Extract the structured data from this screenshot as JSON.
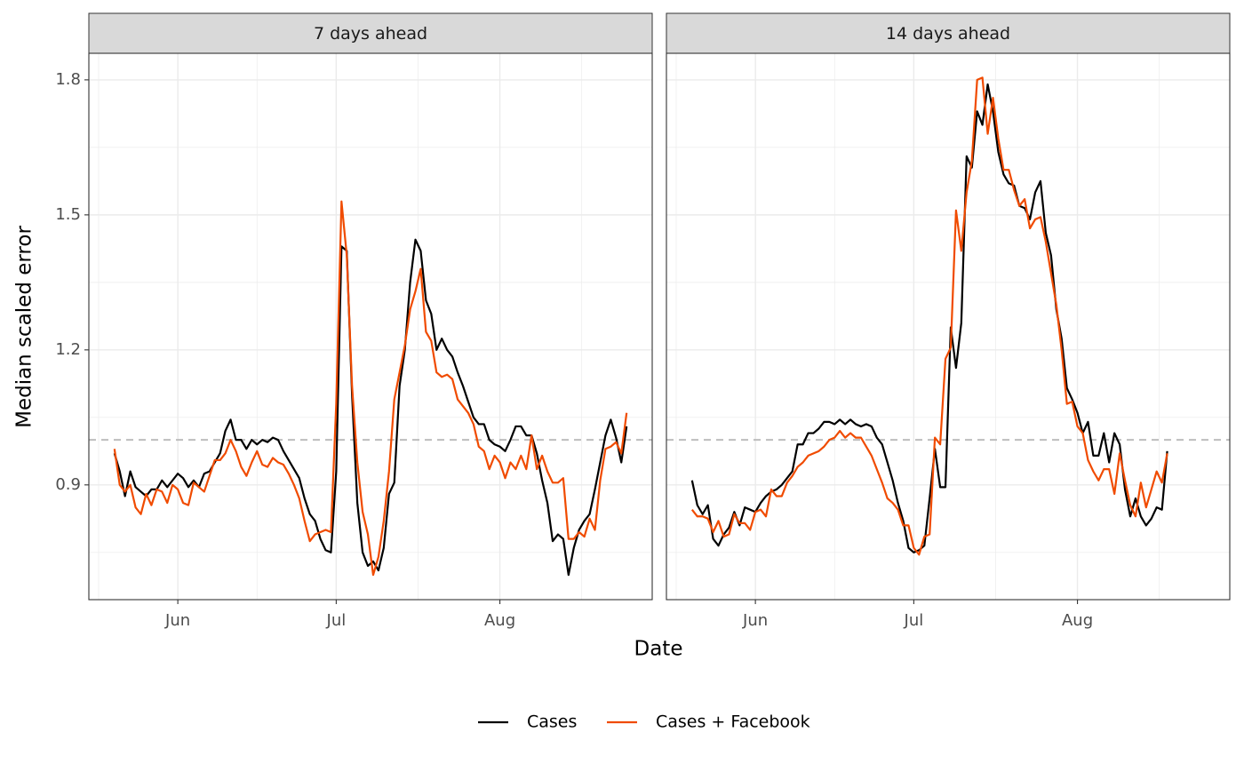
{
  "chart_data": [
    {
      "type": "line",
      "title": "7 days ahead",
      "categories": [
        null,
        null,
        null,
        null,
        null,
        null,
        null,
        null,
        null,
        null,
        null,
        null,
        "Jun",
        null,
        null,
        null,
        null,
        null,
        null,
        null,
        null,
        null,
        null,
        null,
        null,
        null,
        null,
        null,
        null,
        null,
        null,
        null,
        null,
        null,
        null,
        null,
        null,
        null,
        null,
        null,
        null,
        null,
        "Jul",
        null,
        null,
        null,
        null,
        null,
        null,
        null,
        null,
        null,
        null,
        null,
        null,
        null,
        null,
        null,
        null,
        null,
        null,
        null,
        null,
        null,
        null,
        null,
        null,
        null,
        null,
        null,
        null,
        null,
        null,
        "Aug",
        null,
        null,
        null,
        null,
        null,
        null,
        null,
        null,
        null,
        null,
        null,
        null,
        null,
        null,
        null,
        null,
        null,
        null,
        null,
        null,
        null,
        null,
        null,
        null
      ],
      "series": [
        {
          "name": "Cases",
          "color": "#000000",
          "values": [
            0.97,
            0.93,
            0.875,
            0.93,
            0.895,
            0.885,
            0.875,
            0.89,
            0.89,
            0.91,
            0.895,
            0.91,
            0.925,
            0.915,
            0.895,
            0.91,
            0.895,
            0.925,
            0.93,
            0.95,
            0.97,
            1.02,
            1.045,
            1.0,
            1.0,
            0.98,
            1.0,
            0.99,
            1.0,
            0.995,
            1.005,
            1.0,
            0.975,
            0.955,
            0.935,
            0.915,
            0.87,
            0.835,
            0.82,
            0.78,
            0.755,
            0.75,
            0.93,
            1.43,
            1.42,
            1.1,
            0.86,
            0.75,
            0.72,
            0.73,
            0.71,
            0.76,
            0.88,
            0.905,
            1.12,
            1.2,
            1.35,
            1.445,
            1.42,
            1.31,
            1.28,
            1.2,
            1.225,
            1.2,
            1.185,
            1.15,
            1.12,
            1.085,
            1.05,
            1.035,
            1.035,
            1.0,
            0.99,
            0.985,
            0.975,
            1.0,
            1.03,
            1.03,
            1.01,
            1.01,
            0.97,
            0.91,
            0.86,
            0.775,
            0.79,
            0.78,
            0.7,
            0.76,
            0.8,
            0.82,
            0.835,
            0.89,
            0.95,
            1.01,
            1.045,
            1.005,
            0.95,
            1.03
          ]
        },
        {
          "name": "Cases + Facebook",
          "color": "#f04b00",
          "values": [
            0.98,
            0.9,
            0.885,
            0.9,
            0.85,
            0.835,
            0.88,
            0.855,
            0.89,
            0.885,
            0.86,
            0.9,
            0.89,
            0.86,
            0.855,
            0.905,
            0.895,
            0.885,
            0.92,
            0.955,
            0.955,
            0.97,
            1.0,
            0.975,
            0.94,
            0.92,
            0.95,
            0.975,
            0.945,
            0.94,
            0.96,
            0.95,
            0.945,
            0.925,
            0.9,
            0.87,
            0.82,
            0.775,
            0.79,
            0.795,
            0.8,
            0.795,
            1.08,
            1.53,
            1.41,
            1.12,
            0.95,
            0.84,
            0.79,
            0.7,
            0.74,
            0.82,
            0.93,
            1.09,
            1.15,
            1.21,
            1.29,
            1.33,
            1.38,
            1.24,
            1.22,
            1.15,
            1.14,
            1.145,
            1.135,
            1.09,
            1.075,
            1.06,
            1.035,
            0.985,
            0.975,
            0.935,
            0.965,
            0.95,
            0.915,
            0.95,
            0.935,
            0.965,
            0.935,
            1.01,
            0.935,
            0.965,
            0.93,
            0.905,
            0.905,
            0.915,
            0.78,
            0.78,
            0.795,
            0.785,
            0.825,
            0.8,
            0.91,
            0.98,
            0.985,
            0.995,
            0.97,
            1.06
          ]
        }
      ],
      "ylim": [
        0.645,
        1.859
      ],
      "yticks": [
        0.9,
        1.2,
        1.5,
        1.8
      ],
      "grid": true,
      "hline": 1
    },
    {
      "type": "line",
      "title": "14 days ahead",
      "categories": [
        null,
        null,
        null,
        null,
        null,
        null,
        null,
        null,
        null,
        null,
        null,
        null,
        "Jun",
        null,
        null,
        null,
        null,
        null,
        null,
        null,
        null,
        null,
        null,
        null,
        null,
        null,
        null,
        null,
        null,
        null,
        null,
        null,
        null,
        null,
        null,
        null,
        null,
        null,
        null,
        null,
        null,
        null,
        "Jul",
        null,
        null,
        null,
        null,
        null,
        null,
        null,
        null,
        null,
        null,
        null,
        null,
        null,
        null,
        null,
        null,
        null,
        null,
        null,
        null,
        null,
        null,
        null,
        null,
        null,
        null,
        null,
        null,
        null,
        null,
        "Aug",
        null,
        null,
        null,
        null,
        null,
        null,
        null,
        null,
        null,
        null,
        null,
        null,
        null,
        null,
        null,
        null,
        null,
        null,
        null,
        null,
        null,
        null,
        null,
        null
      ],
      "series": [
        {
          "name": "Cases",
          "color": "#000000",
          "values": [
            0.91,
            0.855,
            0.835,
            0.855,
            0.78,
            0.765,
            0.79,
            0.805,
            0.84,
            0.81,
            0.85,
            0.845,
            0.84,
            0.86,
            0.875,
            0.885,
            0.89,
            0.9,
            0.915,
            0.93,
            0.99,
            0.99,
            1.015,
            1.015,
            1.025,
            1.04,
            1.04,
            1.035,
            1.045,
            1.035,
            1.045,
            1.035,
            1.03,
            1.035,
            1.03,
            1.005,
            0.99,
            0.95,
            0.91,
            0.86,
            0.82,
            0.76,
            0.75,
            0.755,
            0.765,
            0.87,
            0.98,
            0.895,
            0.895,
            1.25,
            1.16,
            1.26,
            1.63,
            1.605,
            1.73,
            1.7,
            1.79,
            1.73,
            1.64,
            1.59,
            1.57,
            1.565,
            1.52,
            1.515,
            1.49,
            1.55,
            1.575,
            1.46,
            1.41,
            1.29,
            1.225,
            1.115,
            1.09,
            1.06,
            1.015,
            1.04,
            0.965,
            0.965,
            1.015,
            0.95,
            1.015,
            0.99,
            0.89,
            0.83,
            0.87,
            0.83,
            0.81,
            0.825,
            0.85,
            0.845,
            0.975,
            null,
            null,
            null,
            null,
            null,
            null,
            null
          ]
        },
        {
          "name": "Cases + Facebook",
          "color": "#f04b00",
          "values": [
            0.845,
            0.83,
            0.83,
            0.825,
            0.795,
            0.82,
            0.785,
            0.79,
            0.835,
            0.815,
            0.815,
            0.8,
            0.84,
            0.845,
            0.83,
            0.89,
            0.875,
            0.875,
            0.905,
            0.92,
            0.94,
            0.95,
            0.965,
            0.97,
            0.975,
            0.985,
            1.0,
            1.005,
            1.02,
            1.005,
            1.015,
            1.005,
            1.005,
            0.985,
            0.965,
            0.935,
            0.905,
            0.87,
            0.86,
            0.845,
            0.81,
            0.81,
            0.76,
            0.745,
            0.785,
            0.79,
            1.005,
            0.99,
            1.18,
            1.205,
            1.51,
            1.42,
            1.55,
            1.62,
            1.8,
            1.805,
            1.68,
            1.76,
            1.67,
            1.6,
            1.6,
            1.555,
            1.52,
            1.535,
            1.47,
            1.49,
            1.495,
            1.44,
            1.37,
            1.3,
            1.2,
            1.08,
            1.085,
            1.03,
            1.015,
            0.955,
            0.93,
            0.91,
            0.935,
            0.935,
            0.88,
            0.97,
            0.91,
            0.855,
            0.83,
            0.905,
            0.85,
            0.89,
            0.93,
            0.905,
            0.97,
            null,
            null,
            null,
            null,
            null,
            null,
            null
          ]
        }
      ],
      "ylim": [
        0.645,
        1.859
      ],
      "yticks": [
        0.9,
        1.2,
        1.5,
        1.8
      ],
      "grid": true,
      "hline": 1
    }
  ],
  "x_label": "Date",
  "y_label": "Median scaled error",
  "legend_position": "bottom"
}
